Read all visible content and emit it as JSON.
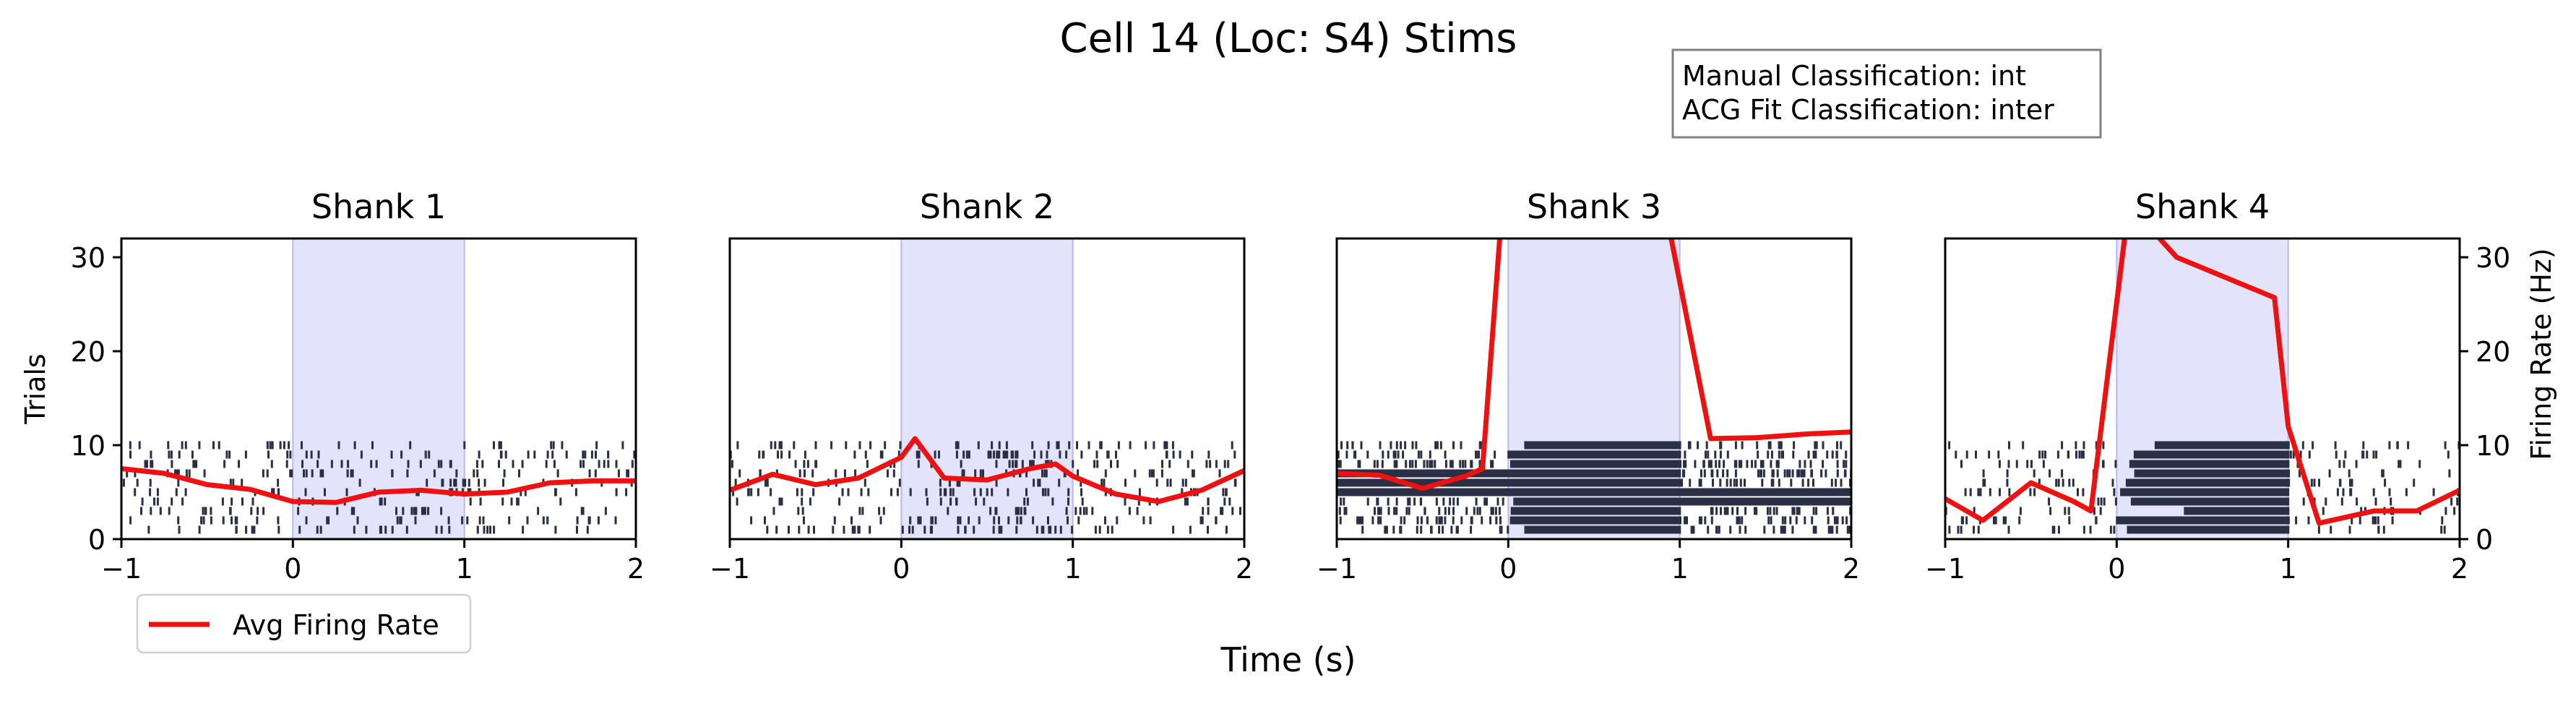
{
  "chart_data": {
    "type": "raster_psth",
    "title": "Cell 14 (Loc: S4) Stims",
    "annotation": [
      "Manual Classification: int",
      "ACG Fit Classification: inter"
    ],
    "xlabel": "Time (s)",
    "ylabel_left": "Trials",
    "ylabel_right": "Firing Rate (Hz)",
    "xlim": [
      -1,
      2
    ],
    "ylim": [
      0,
      32
    ],
    "xticks": [
      -1,
      0,
      1,
      2
    ],
    "yticks": [
      0,
      10,
      20,
      30
    ],
    "stim_window": [
      0,
      1
    ],
    "trials_per_panel": 10,
    "legend": {
      "label": "Avg Firing Rate",
      "placement": "lower-left, below first panel"
    },
    "colors": {
      "raster": "#2b2f45",
      "rate": "#ee1111",
      "stim": "#e3e3fb",
      "stim_edge": "#b8b8ee"
    },
    "panels": [
      {
        "title": "Shank 1",
        "rate_x": [
          -1,
          -0.75,
          -0.5,
          -0.25,
          0,
          0.25,
          0.5,
          0.75,
          1,
          1.25,
          1.5,
          1.75,
          2
        ],
        "rate_y": [
          7.5,
          7.0,
          5.8,
          5.3,
          4.0,
          3.9,
          5.0,
          5.2,
          4.8,
          5.0,
          6.0,
          6.2,
          6.2
        ],
        "raster": {
          "pre": 0.33,
          "stim": 0.33,
          "post": 0.33,
          "ratio": 3.0
        }
      },
      {
        "title": "Shank 2",
        "rate_x": [
          -1,
          -0.75,
          -0.5,
          -0.25,
          0,
          0.08,
          0.25,
          0.5,
          0.75,
          0.9,
          1,
          1.25,
          1.5,
          1.75,
          2
        ],
        "rate_y": [
          5.2,
          6.9,
          5.8,
          6.5,
          8.7,
          10.7,
          6.5,
          6.3,
          7.5,
          8.0,
          6.7,
          4.8,
          4.0,
          5.2,
          7.3
        ],
        "raster": {
          "pre": 0.33,
          "stim": 0.65,
          "post": 0.4,
          "ratio": 3.0
        }
      },
      {
        "title": "Shank 3",
        "rate_x": [
          -1,
          -0.75,
          -0.5,
          -0.25,
          -0.15,
          -0.05,
          0,
          0.5,
          0.95,
          1.18,
          1.45,
          1.75,
          2
        ],
        "rate_y": [
          7.0,
          6.8,
          5.4,
          6.7,
          7.5,
          32,
          60,
          60,
          32,
          10.7,
          10.8,
          11.2,
          11.4
        ],
        "raster": {
          "pre": 0.7,
          "stim": 18.0,
          "post": 0.9,
          "ratio": 3.0,
          "dense_pre_rows": [
            4,
            5,
            6
          ],
          "dense_post_rows": [
            3,
            4
          ]
        }
      },
      {
        "title": "Shank 4",
        "rate_x": [
          -1,
          -0.78,
          -0.5,
          -0.25,
          -0.15,
          0.1,
          0.25,
          0.35,
          0.92,
          1.0,
          1.18,
          1.5,
          1.75,
          2
        ],
        "rate_y": [
          4.3,
          2.0,
          6.0,
          4.0,
          3.0,
          40,
          32,
          30,
          25.7,
          12,
          1.7,
          3.0,
          3.0,
          5.2
        ],
        "raster": {
          "pre": 0.33,
          "stim": 18.0,
          "post": 0.33,
          "ratio": 3.0
        }
      }
    ]
  }
}
